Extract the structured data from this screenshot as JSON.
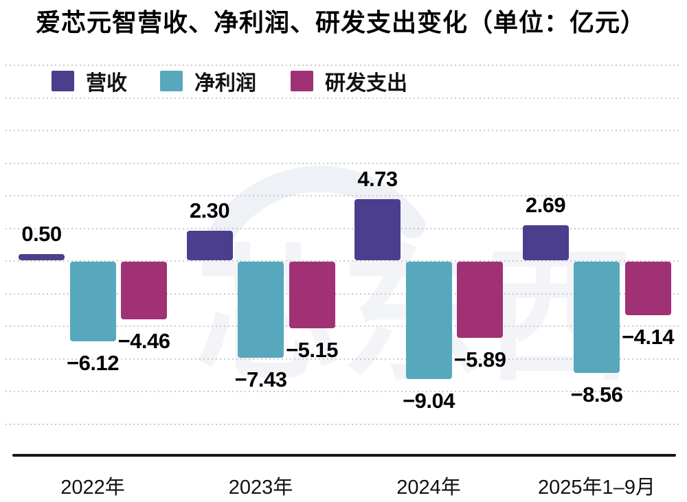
{
  "title": "爱芯元智营收、净利润、研发支出变化（单位：亿元）",
  "watermark_text": "芯东西",
  "colors": {
    "revenue": "#4b3e8d",
    "net_profit": "#57a8bc",
    "rd_spend": "#a13175",
    "axis": "#141414",
    "gridline": "#c9c9c9",
    "watermark": "#f2f4f7"
  },
  "legend": [
    {
      "key": "revenue",
      "label": "营收",
      "color": "#4b3e8d"
    },
    {
      "key": "net-profit",
      "label": "净利润",
      "color": "#57a8bc"
    },
    {
      "key": "rd-spend",
      "label": "研发支出",
      "color": "#a13175"
    }
  ],
  "chart_data": {
    "type": "bar",
    "title": "爱芯元智营收、净利润、研发支出变化（单位：亿元）",
    "unit": "亿元",
    "categories": [
      "2022年",
      "2023年",
      "2024年",
      "2025年1–9月"
    ],
    "series": [
      {
        "name": "营收",
        "key": "revenue",
        "color": "#4b3e8d",
        "values": [
          0.5,
          2.3,
          4.73,
          2.69
        ],
        "labels": [
          "0.50",
          "2.30",
          "4.73",
          "2.69"
        ]
      },
      {
        "name": "净利润",
        "key": "net-profit",
        "color": "#57a8bc",
        "values": [
          -6.12,
          -7.43,
          -9.04,
          -8.56
        ],
        "labels": [
          "−6.12",
          "−7.43",
          "−9.04",
          "−8.56"
        ]
      },
      {
        "name": "研发支出",
        "key": "rd-spend",
        "color": "#a13175",
        "values": [
          -4.46,
          -5.15,
          -5.89,
          -4.14
        ],
        "labels": [
          "−4.46",
          "−5.15",
          "−5.89",
          "−4.14"
        ]
      }
    ],
    "baseline": 0,
    "ylim": [
      -10,
      6
    ],
    "grid": "dotted-horizontal",
    "legend_position": "top-left",
    "value_labels": true,
    "xlabel": "",
    "ylabel": ""
  }
}
